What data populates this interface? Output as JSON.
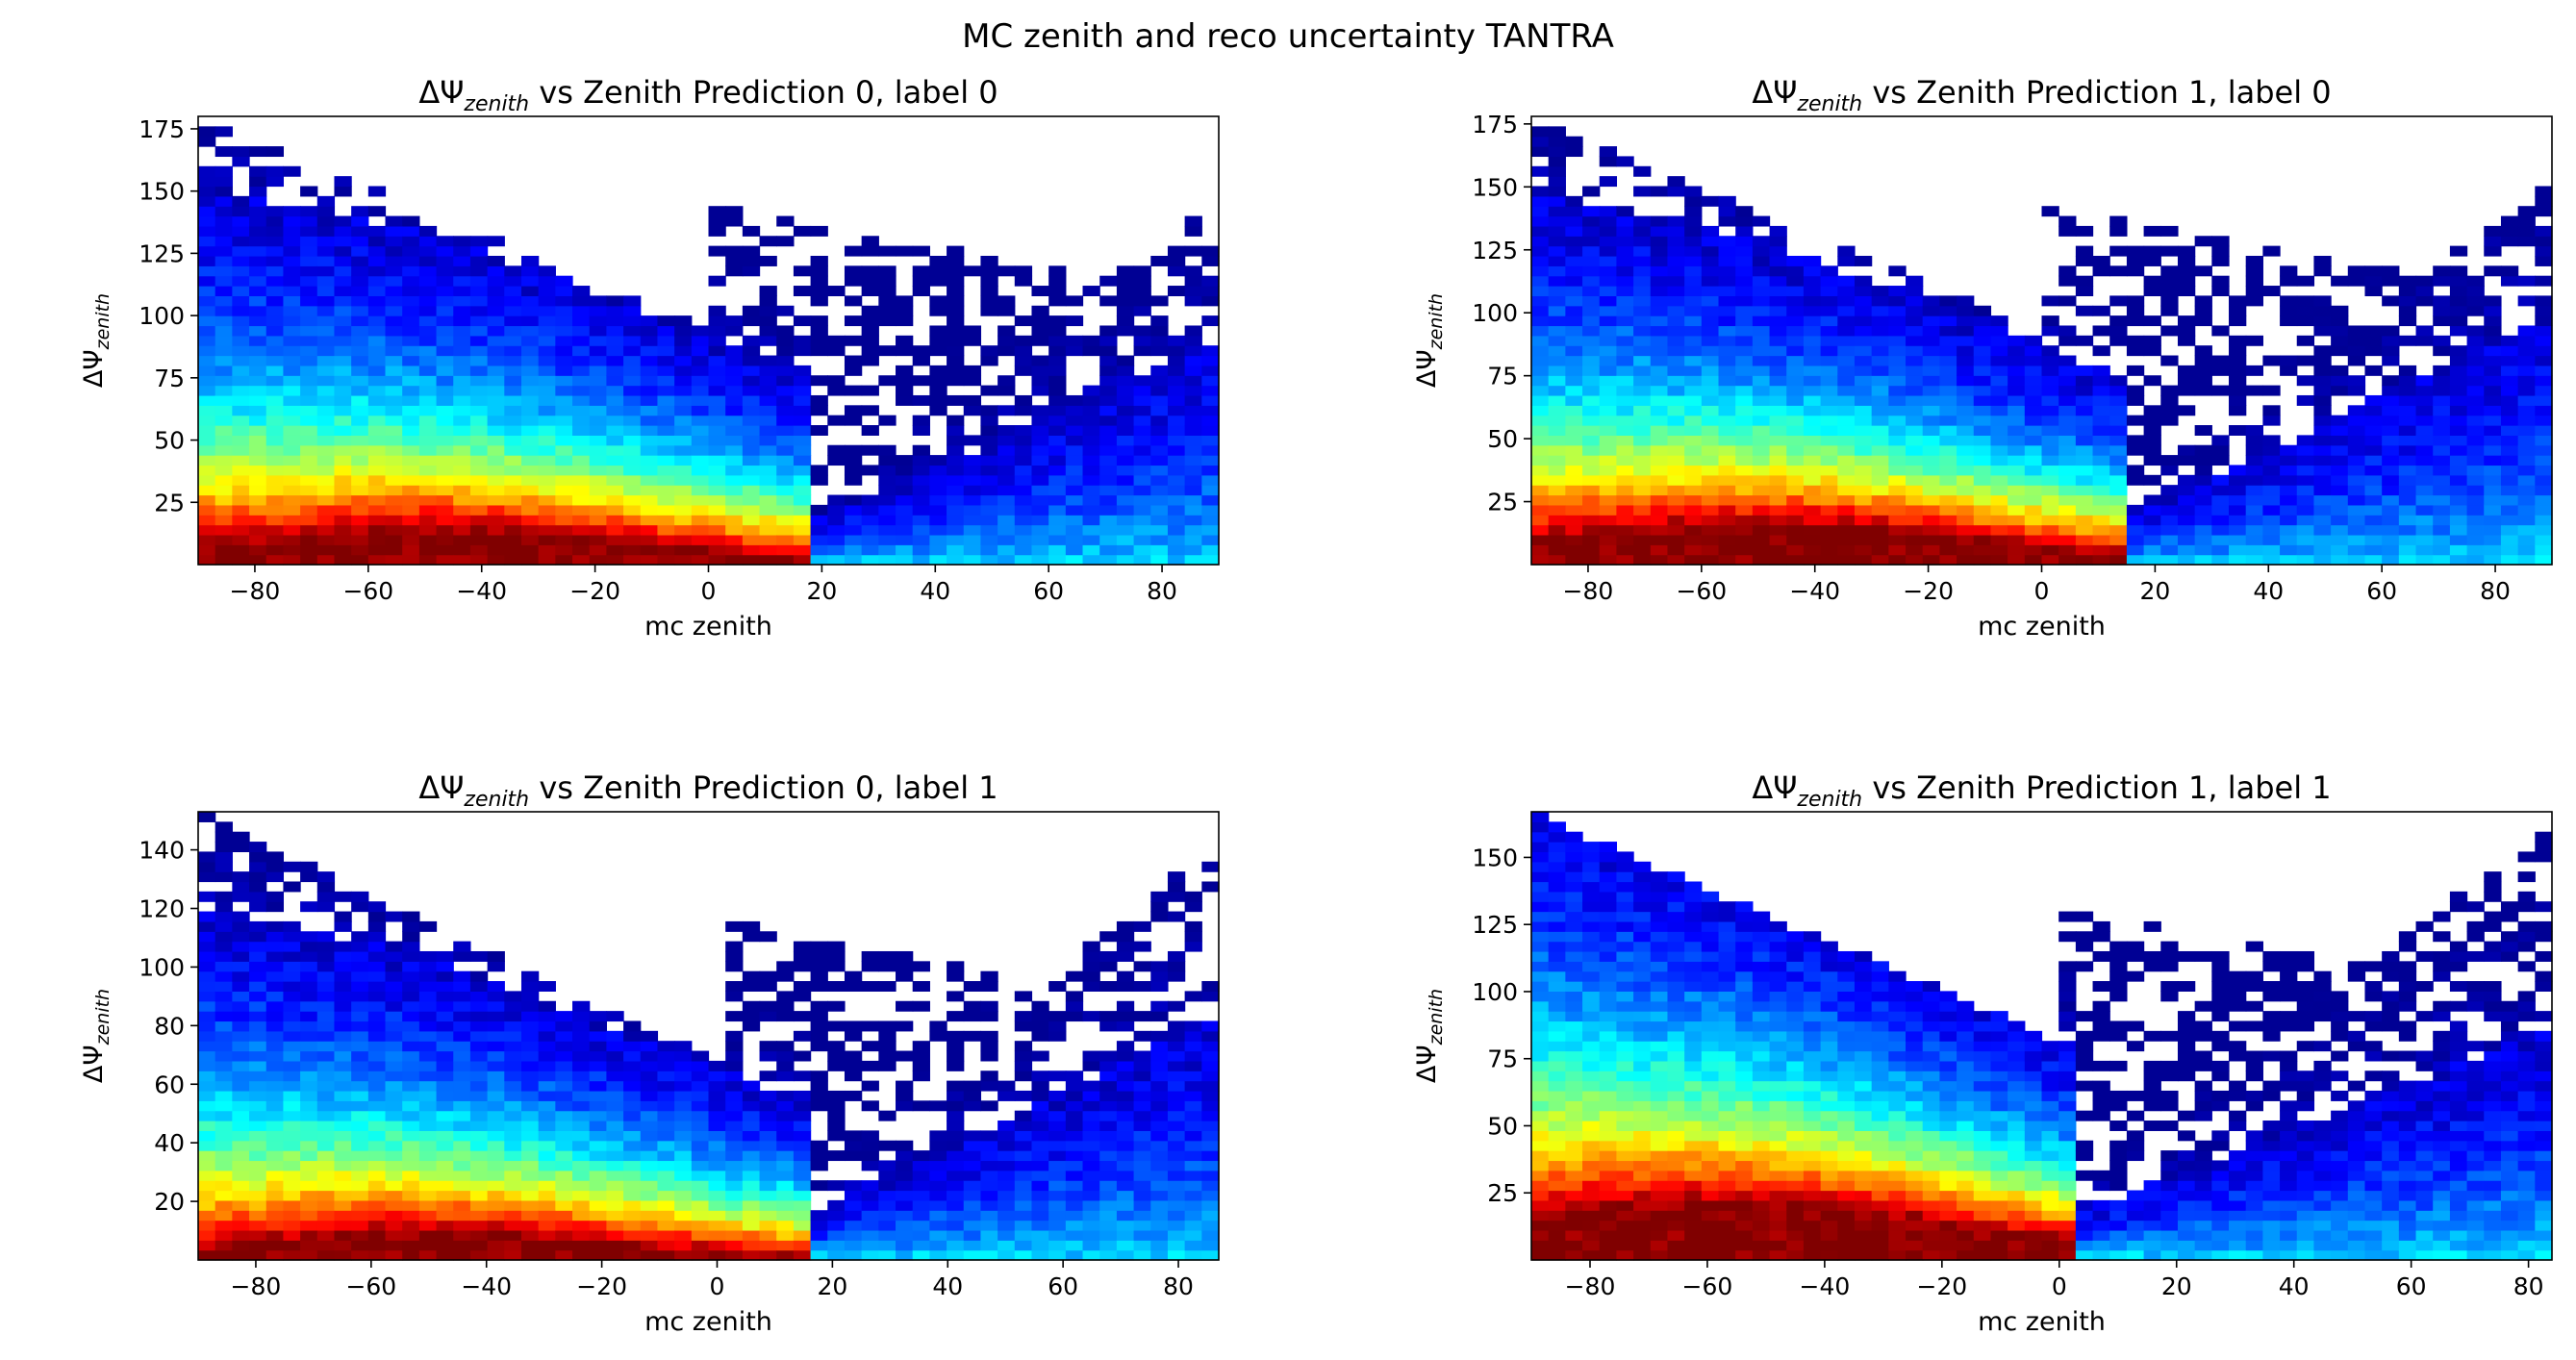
{
  "figure": {
    "suptitle": "MC zenith and reco uncertainty TANTRA"
  },
  "colormap": "jet",
  "chart_data": [
    {
      "type": "heatmap",
      "title_prefix": "ΔΨ",
      "title_sub": "zenith",
      "title_suffix": " vs Zenith Prediction 0, label 0",
      "xlabel": "mc zenith",
      "ylabel_main": "ΔΨ",
      "ylabel_sub": "zenith",
      "xlim": [
        -90,
        90
      ],
      "ylim": [
        0,
        180
      ],
      "xticks": [
        -80,
        -60,
        -40,
        -20,
        0,
        20,
        40,
        60,
        80
      ],
      "yticks": [
        25,
        50,
        75,
        100,
        125,
        150,
        175
      ],
      "grid": false,
      "density_profile": "p0l0"
    },
    {
      "type": "heatmap",
      "title_prefix": "ΔΨ",
      "title_sub": "zenith",
      "title_suffix": " vs Zenith Prediction 1, label 0",
      "xlabel": "mc zenith",
      "ylabel_main": "ΔΨ",
      "ylabel_sub": "zenith",
      "xlim": [
        -90,
        90
      ],
      "ylim": [
        0,
        178
      ],
      "xticks": [
        -80,
        -60,
        -40,
        -20,
        0,
        20,
        40,
        60,
        80
      ],
      "yticks": [
        25,
        50,
        75,
        100,
        125,
        150,
        175
      ],
      "grid": false,
      "density_profile": "p1l0"
    },
    {
      "type": "heatmap",
      "title_prefix": "ΔΨ",
      "title_sub": "zenith",
      "title_suffix": " vs Zenith Prediction 0, label 1",
      "xlabel": "mc zenith",
      "ylabel_main": "ΔΨ",
      "ylabel_sub": "zenith",
      "xlim": [
        -90,
        87
      ],
      "ylim": [
        0,
        153
      ],
      "xticks": [
        -80,
        -60,
        -40,
        -20,
        0,
        20,
        40,
        60,
        80
      ],
      "yticks": [
        20,
        40,
        60,
        80,
        100,
        120,
        140
      ],
      "grid": false,
      "density_profile": "p0l1"
    },
    {
      "type": "heatmap",
      "title_prefix": "ΔΨ",
      "title_sub": "zenith",
      "title_suffix": " vs Zenith Prediction 1, label 1",
      "xlabel": "mc zenith",
      "ylabel_main": "ΔΨ",
      "ylabel_sub": "zenith",
      "xlim": [
        -90,
        84
      ],
      "ylim": [
        0,
        167
      ],
      "xticks": [
        -80,
        -60,
        -40,
        -20,
        0,
        20,
        40,
        60,
        80
      ],
      "yticks": [
        25,
        50,
        75,
        100,
        125,
        150
      ],
      "grid": false,
      "density_profile": "p1l1"
    }
  ]
}
